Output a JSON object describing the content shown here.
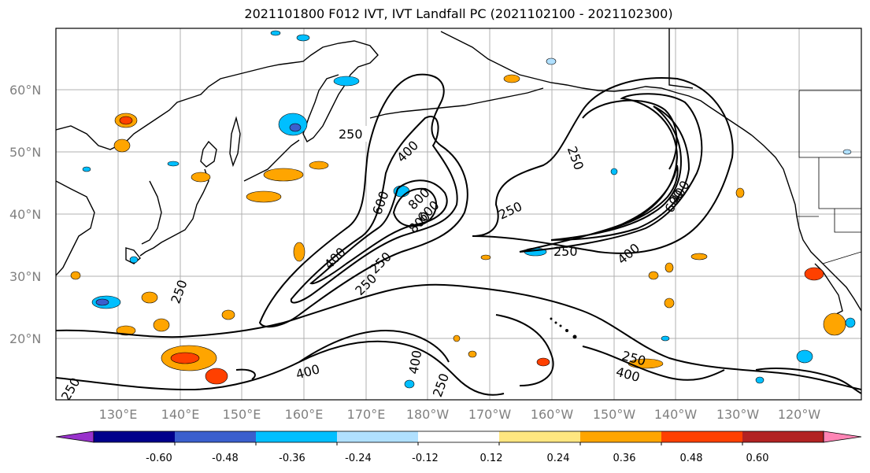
{
  "title": "2021101800 F012 IVT, IVT Landfall PC (2021102100 - 2021102300)",
  "lat_labels": [
    "60°N",
    "50°N",
    "40°N",
    "30°N",
    "20°N"
  ],
  "lon_labels": [
    "130°E",
    "140°E",
    "150°E",
    "160°E",
    "170°E",
    "180°W",
    "170°W",
    "160°W",
    "150°W",
    "140°W",
    "130°W",
    "120°W"
  ],
  "colorbar": {
    "tick_labels": [
      "-0.60",
      "-0.48",
      "-0.36",
      "-0.24",
      "-0.12",
      "0.12",
      "0.24",
      "0.36",
      "0.48",
      "0.60"
    ],
    "colors": [
      "#9932cc",
      "#00008b",
      "#3a5fcd",
      "#00bfff",
      "#b0e0ff",
      "#ffffff",
      "#ffe680",
      "#ffa500",
      "#ff4000",
      "#b22222",
      "#ff85b5"
    ]
  },
  "contour_labels": [
    "250",
    "400",
    "600",
    "800",
    "250",
    "400",
    "600",
    "800",
    "250",
    "250",
    "400",
    "600",
    "250",
    "250",
    "400",
    "250",
    "250",
    "400",
    "400",
    "250",
    "400",
    "250"
  ]
}
